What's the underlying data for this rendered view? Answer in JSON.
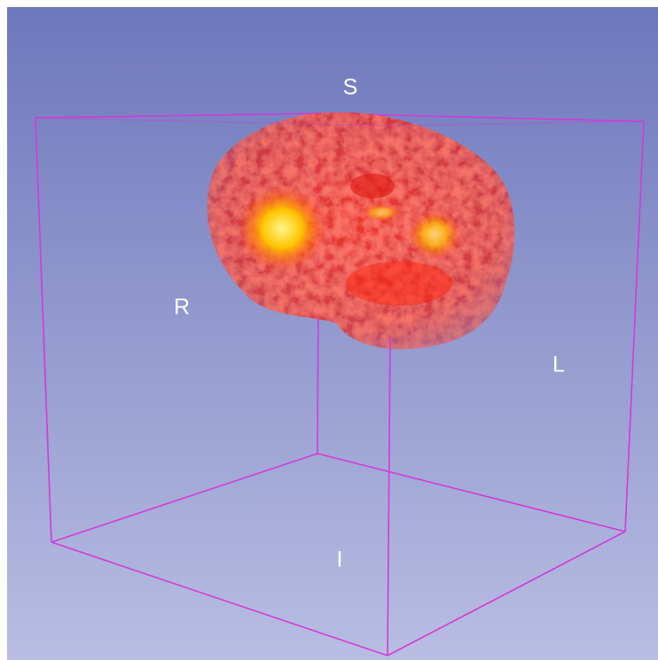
{
  "view": {
    "orientation_labels": {
      "superior": "S",
      "right": "R",
      "left": "L",
      "inferior": "I"
    }
  }
}
